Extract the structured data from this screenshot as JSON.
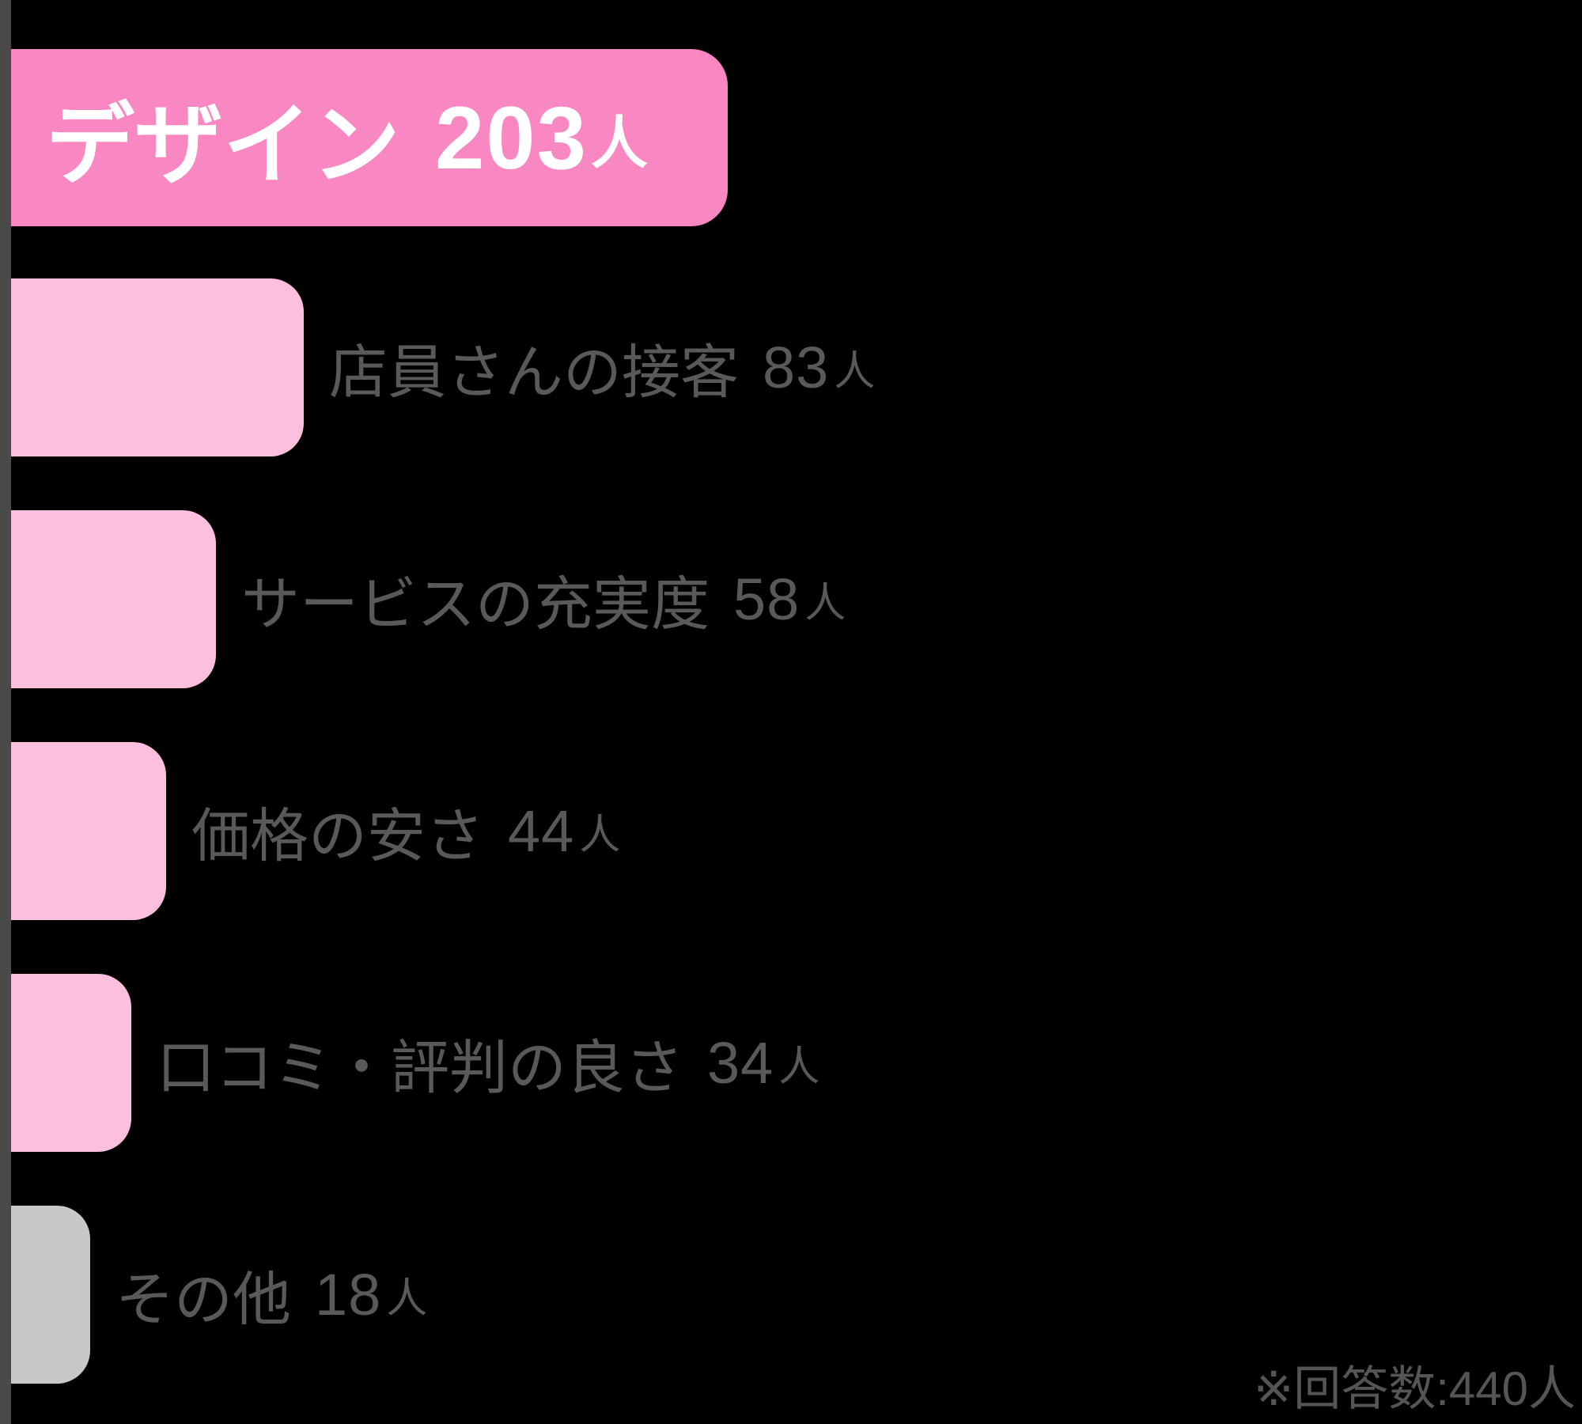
{
  "header": {
    "label": "デザイン",
    "value": 203,
    "unit": "人"
  },
  "bars": [
    {
      "label": "店員さんの接客",
      "value": 83,
      "unit": "人",
      "color": "#fcc0de"
    },
    {
      "label": "サービスの充実度",
      "value": 58,
      "unit": "人",
      "color": "#fcc0de"
    },
    {
      "label": "価格の安さ",
      "value": 44,
      "unit": "人",
      "color": "#fcc0de"
    },
    {
      "label": "口コミ・評判の良さ",
      "value": 34,
      "unit": "人",
      "color": "#fcc0de"
    },
    {
      "label": "その他",
      "value": 18,
      "unit": "人",
      "color": "#c8c8c8"
    }
  ],
  "note": {
    "text": "※回答数:440人"
  },
  "colors": {
    "background": "#000000",
    "axis": "#4a4a4a",
    "header_bar": "#f887c2",
    "bar_pink": "#fcc0de",
    "bar_gray": "#c8c8c8",
    "label_text": "#595959",
    "header_text": "#ffffff",
    "note_text": "#555555"
  },
  "chart_data": {
    "type": "bar",
    "orientation": "horizontal",
    "title": "デザイン 203人",
    "categories": [
      "デザイン",
      "店員さんの接客",
      "サービスの充実度",
      "価格の安さ",
      "口コミ・評判の良さ",
      "その他"
    ],
    "values": [
      203,
      83,
      58,
      44,
      34,
      18
    ],
    "unit": "人",
    "highlight_category": "デザイン",
    "annotation": "※回答数:440人",
    "total_responses": 440,
    "xlim": [
      0,
      203
    ],
    "grid": false,
    "legend": false
  }
}
